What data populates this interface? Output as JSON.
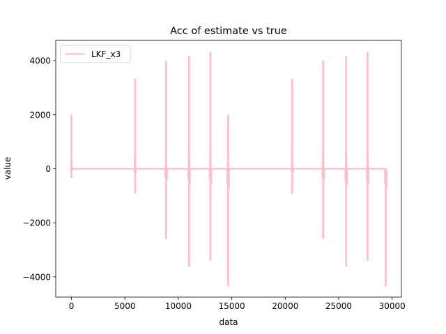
{
  "chart_data": {
    "type": "line",
    "title": "Acc of estimate vs true",
    "xlabel": "data",
    "ylabel": "value",
    "xlim": [
      -1470,
      30870
    ],
    "ylim": [
      -4750,
      4750
    ],
    "x_ticks": [
      0,
      5000,
      10000,
      15000,
      20000,
      25000,
      30000
    ],
    "y_ticks": [
      -4000,
      -2000,
      0,
      2000,
      4000
    ],
    "legend_position": "upper left",
    "grid": false,
    "series": [
      {
        "name": "LKF_x3",
        "color": "#ffc0cb",
        "baseline": 0,
        "x_end": 29400,
        "spikes": [
          {
            "x": 0,
            "max": 2000,
            "min": -350
          },
          {
            "x": 5950,
            "max": 3330,
            "min": -920
          },
          {
            "x": 8850,
            "max": 4000,
            "min": -2600
          },
          {
            "x": 11000,
            "max": 4180,
            "min": -3620
          },
          {
            "x": 13000,
            "max": 4320,
            "min": -3400
          },
          {
            "x": 14650,
            "max": 2000,
            "min": -4350
          },
          {
            "x": 20650,
            "max": 3330,
            "min": -920
          },
          {
            "x": 23550,
            "max": 4000,
            "min": -2600
          },
          {
            "x": 25700,
            "max": 4180,
            "min": -3620
          },
          {
            "x": 27700,
            "max": 4320,
            "min": -3400
          },
          {
            "x": 29400,
            "max": 0,
            "min": -4350
          }
        ]
      }
    ]
  }
}
